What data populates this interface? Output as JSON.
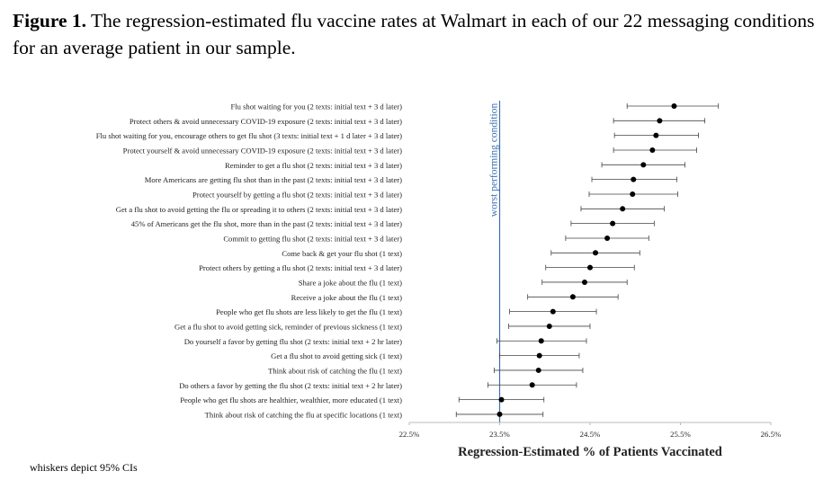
{
  "caption": {
    "label": "Figure 1.",
    "text": " The regression-estimated flu vaccine rates at Walmart in each of our 22 messaging conditions for an average patient in our sample."
  },
  "chart_data": {
    "type": "dot-whisker",
    "title": "",
    "xlabel": "Regression-Estimated % of Patients Vaccinated",
    "ylabel": "",
    "xlim": [
      22.5,
      26.5
    ],
    "xticks": [
      22.5,
      23.5,
      24.5,
      25.5,
      26.5
    ],
    "xtick_labels": [
      "22.5%",
      "23.5%",
      "24.5%",
      "25.5%",
      "26.5%"
    ],
    "reference_line": {
      "x": 23.5,
      "label": "worst performing condition"
    },
    "categories": [
      "Flu shot waiting for you (2 texts: initial text + 3 d later)",
      "Protect others & avoid unnecessary COVID-19 exposure (2 texts: initial text + 3 d later)",
      "Flu shot waiting for you, encourage others to get flu shot (3 texts: initial text + 1 d later + 3 d later)",
      "Protect yourself & avoid unnecessary COVID-19 exposure (2 texts: initial text + 3 d later)",
      "Reminder to get a flu shot (2 texts: initial text + 3 d later)",
      "More Americans are getting flu shot than in the past (2 texts: initial text + 3 d later)",
      "Protect yourself by getting a flu shot (2 texts: initial text + 3 d later)",
      "Get a flu shot to avoid getting the flu or spreading it to others (2 texts: initial text + 3 d later)",
      "45% of Americans get the flu shot, more than in the past (2 texts: initial text + 3 d later)",
      "Commit to getting flu shot (2 texts: initial text + 3 d later)",
      "Come back & get your flu shot (1 text)",
      "Protect others by getting a flu shot (2 texts: initial text + 3 d later)",
      "Share a joke about the flu (1 text)",
      "Receive a joke about the flu (1 text)",
      "People who get flu shots are less likely to get the flu (1 text)",
      "Get a flu shot to avoid getting sick, reminder of previous sickness (1 text)",
      "Do yourself a favor by getting flu shot (2 texts: initial text + 2 hr later)",
      "Get a flu shot to avoid getting sick (1 text)",
      "Think about risk of catching the flu (1 text)",
      "Do others a favor by getting the flu shot (2 texts: initial text + 2 hr later)",
      "People who get flu shots are healthier, wealthier, more educated (1 text)",
      "Think about risk of catching the flu at specific locations (1 text)"
    ],
    "estimates": [
      25.43,
      25.27,
      25.23,
      25.19,
      25.09,
      24.98,
      24.97,
      24.86,
      24.75,
      24.69,
      24.56,
      24.5,
      24.44,
      24.31,
      24.09,
      24.05,
      23.96,
      23.94,
      23.93,
      23.86,
      23.52,
      23.5
    ],
    "ci_lower": [
      24.91,
      24.76,
      24.77,
      24.76,
      24.63,
      24.52,
      24.49,
      24.4,
      24.29,
      24.23,
      24.07,
      24.01,
      23.97,
      23.81,
      23.61,
      23.6,
      23.47,
      23.5,
      23.44,
      23.37,
      23.05,
      23.02
    ],
    "ci_upper": [
      25.92,
      25.77,
      25.7,
      25.68,
      25.55,
      25.46,
      25.47,
      25.32,
      25.21,
      25.15,
      25.05,
      24.99,
      24.91,
      24.81,
      24.57,
      24.5,
      24.46,
      24.38,
      24.42,
      24.35,
      23.99,
      23.98
    ]
  },
  "footnote": "whiskers depict 95% CIs"
}
